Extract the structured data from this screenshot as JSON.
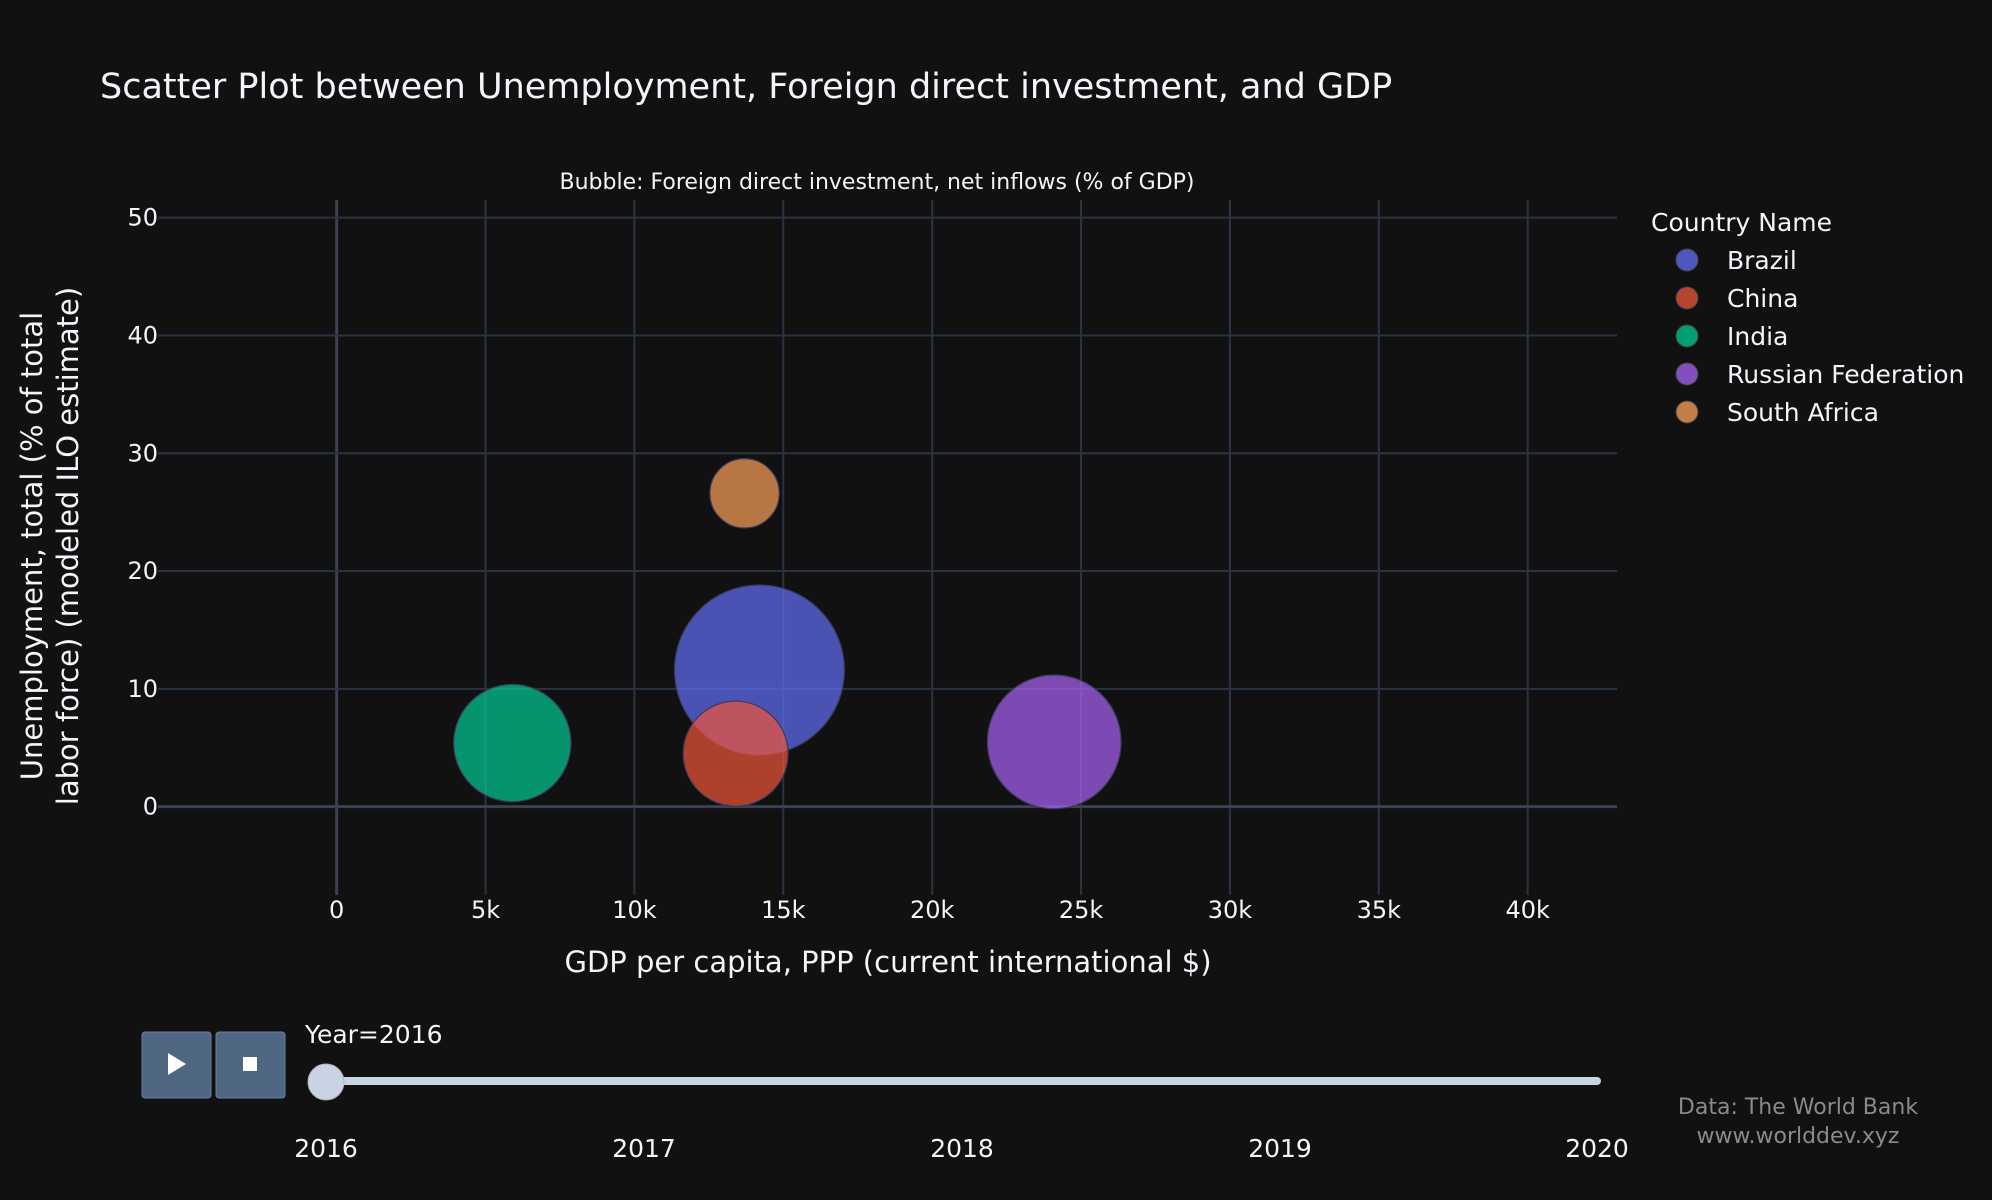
{
  "chart_data": {
    "type": "scatter",
    "title": "Scatter Plot between Unemployment, Foreign direct investment, and GDP",
    "subtitle": "Bubble: Foreign direct investment, net inflows (% of GDP)",
    "xlabel": "GDP per capita, PPP (current international $)",
    "ylabel_lines": [
      "Unemployment, total (% of total",
      "labor force) (modeled ILO estimate)"
    ],
    "xlim": [
      -6000,
      43000
    ],
    "ylim": [
      -7.5,
      51.5
    ],
    "x_ticks": [
      {
        "value": 0,
        "label": "0"
      },
      {
        "value": 5000,
        "label": "5k"
      },
      {
        "value": 10000,
        "label": "10k"
      },
      {
        "value": 15000,
        "label": "15k"
      },
      {
        "value": 20000,
        "label": "20k"
      },
      {
        "value": 25000,
        "label": "25k"
      },
      {
        "value": 30000,
        "label": "30k"
      },
      {
        "value": 35000,
        "label": "35k"
      },
      {
        "value": 40000,
        "label": "40k"
      }
    ],
    "y_ticks": [
      {
        "value": 0,
        "label": "0"
      },
      {
        "value": 10,
        "label": "10"
      },
      {
        "value": 20,
        "label": "20"
      },
      {
        "value": 30,
        "label": "30"
      },
      {
        "value": 40,
        "label": "40"
      },
      {
        "value": 50,
        "label": "50"
      }
    ],
    "grid": true,
    "legend_title": "Country Name",
    "legend_position": "right",
    "series": [
      {
        "name": "Brazil",
        "color": "#636efa",
        "x": 14200,
        "y": 11.6,
        "size": 4.2
      },
      {
        "name": "China",
        "color": "#ef553b",
        "x": 13400,
        "y": 4.5,
        "size": 1.6
      },
      {
        "name": "India",
        "color": "#00cc96",
        "x": 5900,
        "y": 5.4,
        "size": 2.0
      },
      {
        "name": "Russian Federation",
        "color": "#ab63fa",
        "x": 24100,
        "y": 5.5,
        "size": 2.6
      },
      {
        "name": "South Africa",
        "color": "#ffa15a",
        "x": 13700,
        "y": 26.6,
        "size": 0.7
      }
    ]
  },
  "slider": {
    "label": "Year=2016",
    "current": 2016,
    "years": [
      "2016",
      "2017",
      "2018",
      "2019",
      "2020"
    ],
    "play_icon": "play-icon",
    "stop_icon": "stop-icon"
  },
  "credit": {
    "line1": "Data: The World Bank",
    "line2": "www.worlddev.xyz"
  }
}
